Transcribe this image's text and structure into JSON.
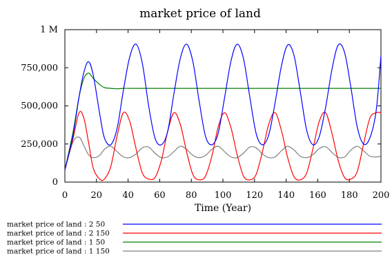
{
  "chart_data": {
    "type": "line",
    "title": "market price of land",
    "xlabel": "Time (Year)",
    "ylabel": "",
    "xlim": [
      0,
      200
    ],
    "ylim": [
      0,
      1000000
    ],
    "x_ticks": [
      0,
      20,
      40,
      60,
      80,
      100,
      120,
      140,
      160,
      180,
      200
    ],
    "x_tick_labels": [
      "0",
      "20",
      "40",
      "60",
      "80",
      "100",
      "120",
      "140",
      "160",
      "180",
      "200"
    ],
    "y_ticks": [
      0,
      250000,
      500000,
      750000,
      1000000
    ],
    "y_tick_labels": [
      "0",
      "250,000",
      "500,000",
      "750,000",
      "1 M"
    ],
    "grid": false,
    "legend_placement": "bottom",
    "x": [
      0,
      5,
      9,
      12,
      15,
      18,
      22,
      25,
      29,
      33,
      37,
      41,
      45,
      49,
      53,
      57,
      61,
      65,
      69,
      73,
      77,
      81,
      85,
      89,
      93,
      97,
      101,
      105,
      109,
      113,
      117,
      121,
      125,
      129,
      133,
      137,
      141,
      145,
      149,
      153,
      157,
      161,
      165,
      169,
      173,
      177,
      181,
      185,
      189,
      193,
      197,
      200
    ],
    "series": [
      {
        "name": "market price of land : 2 50",
        "color": "#0000ff",
        "values": [
          80000,
          300000,
          560000,
          720000,
          790000,
          700000,
          450000,
          290000,
          245000,
          350000,
          600000,
          820000,
          905000,
          780000,
          500000,
          290000,
          245000,
          330000,
          580000,
          810000,
          905000,
          790000,
          530000,
          300000,
          245000,
          320000,
          550000,
          790000,
          905000,
          810000,
          560000,
          320000,
          245000,
          310000,
          520000,
          760000,
          900000,
          830000,
          590000,
          340000,
          245000,
          300000,
          490000,
          740000,
          900000,
          850000,
          620000,
          360000,
          250000,
          290000,
          470000,
          830000
        ]
      },
      {
        "name": "market price of land : 2 150",
        "color": "#ff0000",
        "values": [
          80000,
          280000,
          455000,
          420000,
          260000,
          90000,
          20000,
          20000,
          100000,
          300000,
          455000,
          400000,
          220000,
          60000,
          20000,
          30000,
          140000,
          330000,
          455000,
          380000,
          200000,
          50000,
          15000,
          40000,
          170000,
          360000,
          455000,
          360000,
          180000,
          40000,
          15000,
          50000,
          200000,
          380000,
          455000,
          340000,
          160000,
          35000,
          15000,
          60000,
          220000,
          400000,
          455000,
          320000,
          140000,
          30000,
          20000,
          70000,
          250000,
          420000,
          455000,
          455000
        ]
      },
      {
        "name": "market price of land : 1 50",
        "color": "#008000",
        "values": [
          80000,
          320000,
          560000,
          680000,
          715000,
          680000,
          640000,
          620000,
          615000,
          612000,
          615000,
          615000,
          615000,
          615000,
          615000,
          615000,
          615000,
          615000,
          615000,
          615000,
          615000,
          615000,
          615000,
          615000,
          615000,
          615000,
          615000,
          615000,
          615000,
          615000,
          615000,
          615000,
          615000,
          615000,
          615000,
          615000,
          615000,
          615000,
          615000,
          615000,
          615000,
          615000,
          615000,
          615000,
          615000,
          615000,
          615000,
          615000,
          615000,
          615000,
          615000,
          615000
        ]
      },
      {
        "name": "market price of land : 1 150",
        "color": "#808080",
        "values": [
          80000,
          260000,
          295000,
          240000,
          180000,
          160000,
          175000,
          215000,
          235000,
          200000,
          165000,
          160000,
          185000,
          225000,
          230000,
          190000,
          160000,
          165000,
          200000,
          235000,
          215000,
          175000,
          160000,
          175000,
          215000,
          235000,
          200000,
          165000,
          160000,
          190000,
          230000,
          225000,
          185000,
          160000,
          165000,
          205000,
          235000,
          210000,
          170000,
          160000,
          180000,
          220000,
          232000,
          195000,
          162000,
          165000,
          210000,
          235000,
          205000,
          170000,
          165000,
          170000
        ]
      }
    ]
  }
}
